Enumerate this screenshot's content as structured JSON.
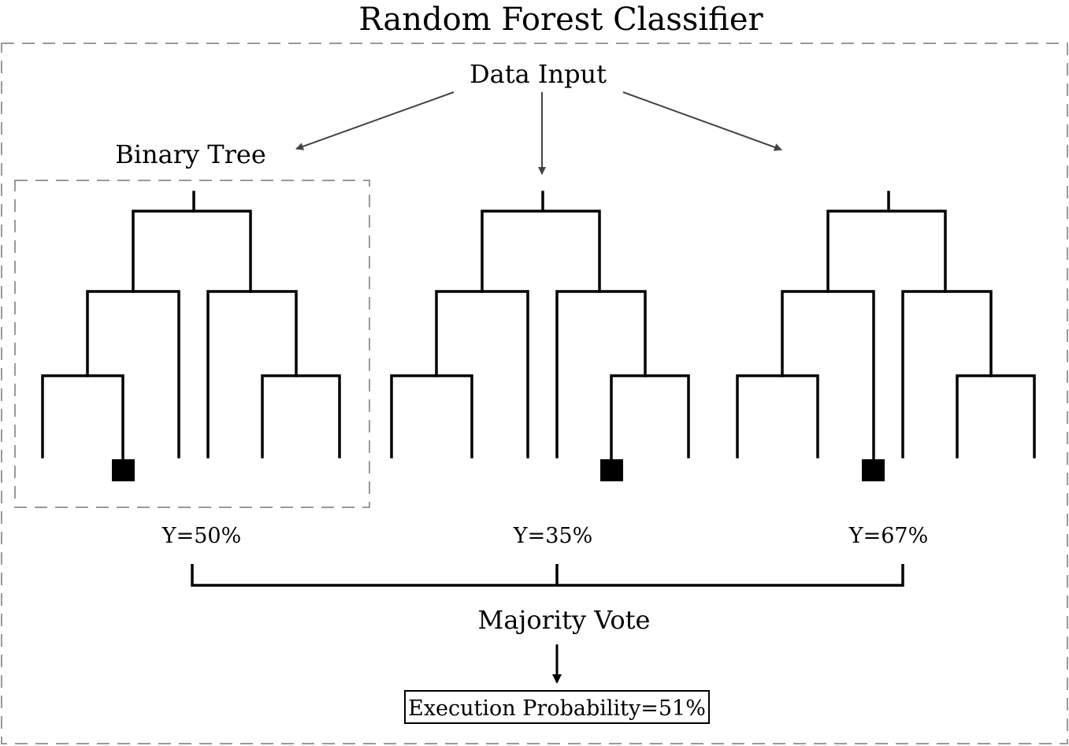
{
  "title": "Random Forest Classifier",
  "data_input_label": "Data Input",
  "binary_tree_label": "Binary Tree",
  "trees": [
    {
      "prediction_label": "Y=50%",
      "leaf_count": 6,
      "highlighted_leaf": 2
    },
    {
      "prediction_label": "Y=35%",
      "leaf_count": 6,
      "highlighted_leaf": 5
    },
    {
      "prediction_label": "Y=67%",
      "leaf_count": 6,
      "highlighted_leaf": 3
    }
  ],
  "majority_vote_label": "Majority Vote",
  "result_label": "Execution Probability=51%",
  "colors": {
    "tree_stroke": "#000000",
    "arrow": "#444444",
    "dashed_border": "#999999"
  }
}
